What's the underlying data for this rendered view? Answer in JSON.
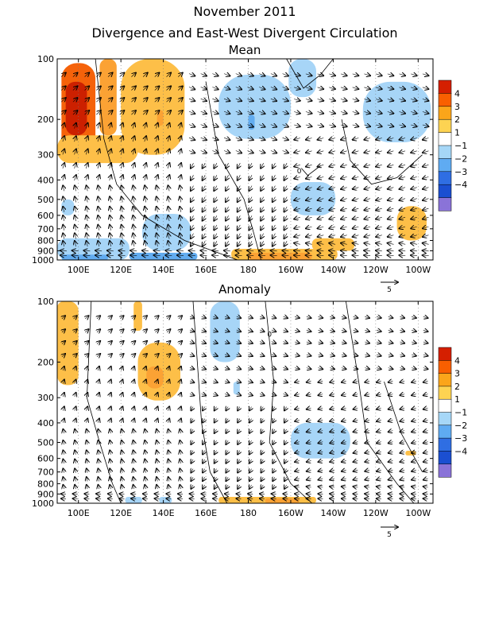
{
  "figure": {
    "title_line1": "November 2011",
    "title_line2": "Divergence and East-West Divergent Circulation"
  },
  "chart_data": [
    {
      "type": "heatmap",
      "title": "Mean",
      "y_scale": "log",
      "x_ticks": [
        "100E",
        "120E",
        "140E",
        "160E",
        "180",
        "160W",
        "140W",
        "120W",
        "100W"
      ],
      "x_tick_lon": [
        100,
        120,
        140,
        160,
        180,
        200,
        220,
        240,
        260
      ],
      "xlim_lon": [
        90,
        267
      ],
      "y_ticks": [
        100,
        200,
        300,
        400,
        500,
        600,
        700,
        800,
        900,
        1000
      ],
      "ylim": [
        1000,
        100
      ],
      "vector_scale_label": "5",
      "contour_label": "0",
      "regions": [
        {
          "level": 3,
          "lon": [
            92,
            108
          ],
          "p": [
            105,
            300
          ]
        },
        {
          "level": 4,
          "lon": [
            94,
            104
          ],
          "p": [
            130,
            240
          ]
        },
        {
          "level": 2,
          "lon": [
            110,
            118
          ],
          "p": [
            100,
            240
          ]
        },
        {
          "level": 1,
          "lon": [
            120,
            150
          ],
          "p": [
            100,
            300
          ]
        },
        {
          "level": 1,
          "lon": [
            90,
            128
          ],
          "p": [
            240,
            330
          ]
        },
        {
          "level": 2,
          "lon": [
            137,
            140
          ],
          "p": [
            180,
            215
          ]
        },
        {
          "level": -1,
          "lon": [
            166,
            200
          ],
          "p": [
            120,
            250
          ]
        },
        {
          "level": -2,
          "lon": [
            180,
            183
          ],
          "p": [
            190,
            225
          ]
        },
        {
          "level": -1,
          "lon": [
            199,
            212
          ],
          "p": [
            100,
            155
          ]
        },
        {
          "level": -1,
          "lon": [
            234,
            266
          ],
          "p": [
            130,
            260
          ]
        },
        {
          "level": -1,
          "lon": [
            200,
            221
          ],
          "p": [
            410,
            600
          ]
        },
        {
          "level": -1,
          "lon": [
            92,
            98
          ],
          "p": [
            500,
            600
          ]
        },
        {
          "level": -1,
          "lon": [
            130,
            153
          ],
          "p": [
            590,
            900
          ]
        },
        {
          "level": -1,
          "lon": [
            90,
            124
          ],
          "p": [
            780,
            1000
          ]
        },
        {
          "level": -2,
          "lon": [
            92,
            114
          ],
          "p": [
            940,
            1000
          ]
        },
        {
          "level": -2,
          "lon": [
            124,
            156
          ],
          "p": [
            920,
            1000
          ]
        },
        {
          "level": 1,
          "lon": [
            210,
            230
          ],
          "p": [
            780,
            900
          ]
        },
        {
          "level": 1,
          "lon": [
            172,
            222
          ],
          "p": [
            880,
            1000
          ]
        },
        {
          "level": 2,
          "lon": [
            180,
            210
          ],
          "p": [
            920,
            1000
          ]
        },
        {
          "level": 1,
          "lon": [
            250,
            264
          ],
          "p": [
            540,
            800
          ]
        }
      ]
    },
    {
      "type": "heatmap",
      "title": "Anomaly",
      "y_scale": "log",
      "x_ticks": [
        "100E",
        "120E",
        "140E",
        "160E",
        "180",
        "160W",
        "140W",
        "120W",
        "100W"
      ],
      "x_tick_lon": [
        100,
        120,
        140,
        160,
        180,
        200,
        220,
        240,
        260
      ],
      "xlim_lon": [
        90,
        267
      ],
      "y_ticks": [
        100,
        200,
        300,
        400,
        500,
        600,
        700,
        800,
        900,
        1000
      ],
      "ylim": [
        1000,
        100
      ],
      "vector_scale_label": "5",
      "contour_label": "0",
      "regions": [
        {
          "level": 1,
          "lon": [
            90,
            100
          ],
          "p": [
            100,
            260
          ]
        },
        {
          "level": 1,
          "lon": [
            90,
            98
          ],
          "p": [
            100,
            118
          ]
        },
        {
          "level": 1,
          "lon": [
            126,
            130
          ],
          "p": [
            100,
            140
          ]
        },
        {
          "level": 1,
          "lon": [
            128,
            148
          ],
          "p": [
            160,
            310
          ]
        },
        {
          "level": 2,
          "lon": [
            132,
            140
          ],
          "p": [
            210,
            270
          ]
        },
        {
          "level": -1,
          "lon": [
            162,
            176
          ],
          "p": [
            100,
            200
          ]
        },
        {
          "level": -1,
          "lon": [
            173,
            176
          ],
          "p": [
            250,
            290
          ]
        },
        {
          "level": -1,
          "lon": [
            200,
            228
          ],
          "p": [
            400,
            600
          ]
        },
        {
          "level": 1,
          "lon": [
            254,
            259
          ],
          "p": [
            550,
            580
          ]
        },
        {
          "level": -1,
          "lon": [
            122,
            130
          ],
          "p": [
            930,
            1000
          ]
        },
        {
          "level": -1,
          "lon": [
            138,
            144
          ],
          "p": [
            930,
            1000
          ]
        },
        {
          "level": 1,
          "lon": [
            166,
            212
          ],
          "p": [
            930,
            1000
          ]
        },
        {
          "level": 2,
          "lon": [
            188,
            204
          ],
          "p": [
            945,
            1000
          ]
        }
      ]
    }
  ],
  "colorbar": {
    "labels": [
      "4",
      "3",
      "2",
      "1",
      "-1",
      "-2",
      "-3",
      "-4"
    ],
    "colors": [
      "#d51f00",
      "#f95f00",
      "#fba51a",
      "#fdd352",
      "#ffffff",
      "#a6d7f7",
      "#5fabf2",
      "#2f6ee3",
      "#1b4fd1",
      "#8a73d8"
    ]
  },
  "level_colors": {
    "4": "#cc2000",
    "3": "#f5620a",
    "2": "#fba234",
    "1": "#fdbf48",
    "-1": "#a7d5f7",
    "-2": "#62acf0",
    "-3": "#2e6fe0",
    "-4": "#1a4fd0"
  }
}
